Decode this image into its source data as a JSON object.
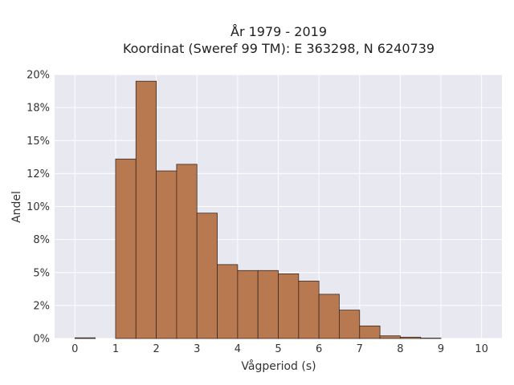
{
  "chart_data": {
    "type": "bar",
    "title": "År 1979 - 2019",
    "subtitle": "Koordinat (Sweref 99 TM): E 363298, N 6240739",
    "xlabel": "Vågperiod (s)",
    "ylabel": "Andel",
    "xlim": [
      -0.5,
      10.5
    ],
    "ylim": [
      0,
      0.2
    ],
    "x_ticks": [
      0,
      1,
      2,
      3,
      4,
      5,
      6,
      7,
      8,
      9,
      10
    ],
    "y_ticks": [
      0,
      0.025,
      0.05,
      0.075,
      0.1,
      0.125,
      0.15,
      0.175,
      0.2
    ],
    "y_tick_labels": [
      "0%",
      "2%",
      "5%",
      "8%",
      "10%",
      "12%",
      "15%",
      "18%",
      "20%"
    ],
    "bin_edges": [
      0,
      0.5,
      1,
      1.5,
      2,
      2.5,
      3,
      3.5,
      4,
      4.5,
      5,
      5.5,
      6,
      6.5,
      7,
      7.5,
      8,
      8.5,
      9,
      9.5,
      10
    ],
    "values": [
      0.0005,
      0,
      0.136,
      0.195,
      0.127,
      0.132,
      0.095,
      0.056,
      0.0515,
      0.0515,
      0.049,
      0.0435,
      0.0335,
      0.0215,
      0.0095,
      0.002,
      0.001,
      0.0003,
      0,
      0
    ],
    "bar_color": "#b87850",
    "bar_edge_color": "#3a2a20",
    "background_color": "#e8e8f0",
    "grid": true
  }
}
